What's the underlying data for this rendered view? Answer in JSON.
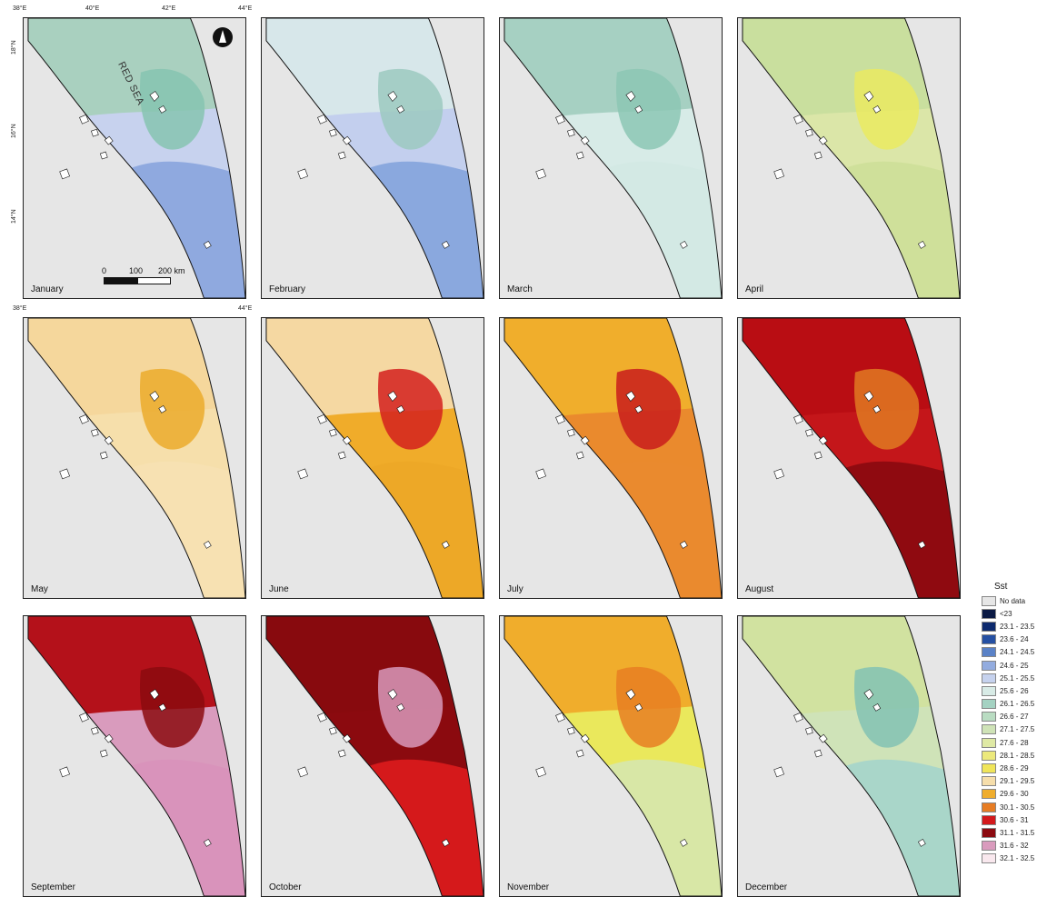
{
  "map": {
    "sea_label": "RED SEA",
    "lon_ticks_top": [
      "38°E",
      "40°E",
      "42°E",
      "44°E"
    ],
    "lon_ticks_mid": [
      "38°E",
      "44°E"
    ],
    "lat_ticks": [
      "18°N",
      "16°N",
      "14°N"
    ],
    "scale": {
      "labels": [
        "0",
        "100",
        "200 km"
      ]
    },
    "north_arrow": "north-arrow-icon"
  },
  "panels": [
    {
      "month": "January",
      "sea_color": "#c7d2ee",
      "north_color": "#a9d0bf",
      "south_color": "#8fa9df",
      "islands_color": "#86c4b0"
    },
    {
      "month": "February",
      "sea_color": "#c3cfee",
      "north_color": "#d7e7ea",
      "south_color": "#8aa8de",
      "islands_color": "#9cc9c0"
    },
    {
      "month": "March",
      "sea_color": "#d7ebe7",
      "north_color": "#a6d0c2",
      "south_color": "#d3e9e4",
      "islands_color": "#8cc7b4"
    },
    {
      "month": "April",
      "sea_color": "#dbe6a8",
      "north_color": "#c9df9e",
      "south_color": "#cfe09a",
      "islands_color": "#eaea60"
    },
    {
      "month": "May",
      "sea_color": "#f6dfab",
      "north_color": "#f5d79c",
      "south_color": "#f7e1b2",
      "islands_color": "#ebab2c"
    },
    {
      "month": "June",
      "sea_color": "#f0ac2a",
      "north_color": "#f5d8a2",
      "south_color": "#eda827",
      "islands_color": "#d4201d"
    },
    {
      "month": "July",
      "sea_color": "#ea8a2d",
      "north_color": "#f0ae2c",
      "south_color": "#ea8a2e",
      "islands_color": "#c91c1c"
    },
    {
      "month": "August",
      "sea_color": "#c4161a",
      "north_color": "#b90d13",
      "south_color": "#8f0a10",
      "islands_color": "#e07a22"
    },
    {
      "month": "September",
      "sea_color": "#d99bbd",
      "north_color": "#b4111a",
      "south_color": "#d993bb",
      "islands_color": "#8b0a0f"
    },
    {
      "month": "October",
      "sea_color": "#8b0a0f",
      "north_color": "#880a0e",
      "south_color": "#d5191b",
      "islands_color": "#d899bb"
    },
    {
      "month": "November",
      "sea_color": "#eae85c",
      "north_color": "#f0ad2c",
      "south_color": "#d8e7a6",
      "islands_color": "#e77e22"
    },
    {
      "month": "December",
      "sea_color": "#cfe3b8",
      "north_color": "#d1e2a0",
      "south_color": "#a9d6c9",
      "islands_color": "#82c2b3"
    }
  ],
  "legend": {
    "title": "Sst",
    "items": [
      {
        "label": "No data",
        "color": "#e6e6e6"
      },
      {
        "label": "<23",
        "color": "#0b1a44"
      },
      {
        "label": "23.1 - 23.5",
        "color": "#0d2a6e"
      },
      {
        "label": "23.6 - 24",
        "color": "#2550a3"
      },
      {
        "label": "24.1 - 24.5",
        "color": "#5a82c7"
      },
      {
        "label": "24.6 - 25",
        "color": "#93acdf"
      },
      {
        "label": "25.1 - 25.5",
        "color": "#c6d2ee"
      },
      {
        "label": "25.6 - 26",
        "color": "#d8ebe6"
      },
      {
        "label": "26.1 - 26.5",
        "color": "#a4d2c2"
      },
      {
        "label": "26.6 - 27",
        "color": "#b9dcc2"
      },
      {
        "label": "27.1 - 27.5",
        "color": "#cfe3b7"
      },
      {
        "label": "27.6 - 28",
        "color": "#dfe9a5"
      },
      {
        "label": "28.1 - 28.5",
        "color": "#ece97c"
      },
      {
        "label": "28.6 - 29",
        "color": "#f0e55a"
      },
      {
        "label": "29.1 - 29.5",
        "color": "#f6deab"
      },
      {
        "label": "29.6 - 30",
        "color": "#efad2d"
      },
      {
        "label": "30.1 - 30.5",
        "color": "#e77d24"
      },
      {
        "label": "30.6 - 31",
        "color": "#d3191c"
      },
      {
        "label": "31.1 - 31.5",
        "color": "#8b0a10"
      },
      {
        "label": "31.6 - 32",
        "color": "#d99bbd"
      },
      {
        "label": "32.1 - 32.5",
        "color": "#f9e8ee"
      }
    ]
  }
}
